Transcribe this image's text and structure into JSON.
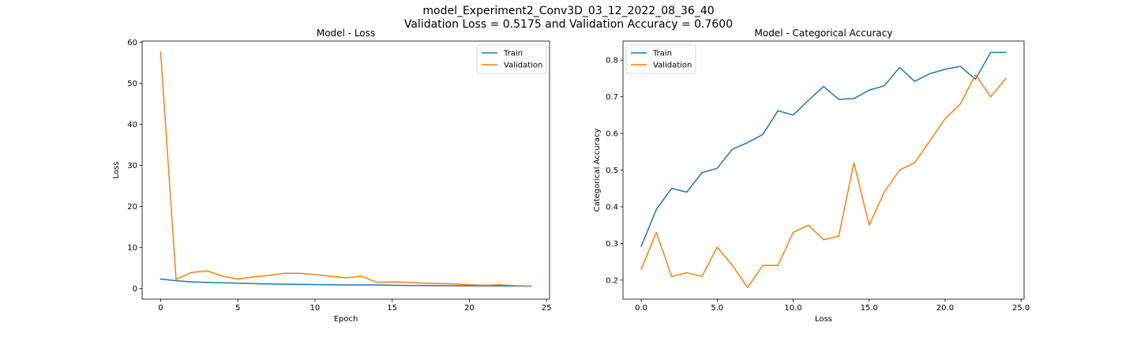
{
  "figure": {
    "title_line1": "model_Experiment2_Conv3D_03_12_2022_08_36_40",
    "title_line2": "Validation Loss = 0.5175 and Validation Accuracy = 0.7600"
  },
  "colors": {
    "train": "#1f77b4",
    "validation": "#ff7f0e"
  },
  "chart_data": [
    {
      "type": "line",
      "title": "Model - Loss",
      "xlabel": "Epoch",
      "ylabel": "Loss",
      "xlim": [
        -1.2,
        25.2
      ],
      "ylim": [
        -2.6,
        60.3
      ],
      "xticks": [
        0,
        5,
        10,
        15,
        20,
        25
      ],
      "yticks": [
        0,
        10,
        20,
        30,
        40,
        50,
        60
      ],
      "tick_format": "int",
      "legend": "upper right",
      "grid": false,
      "x": [
        0,
        1,
        2,
        3,
        4,
        5,
        6,
        7,
        8,
        9,
        10,
        11,
        12,
        13,
        14,
        15,
        16,
        17,
        18,
        19,
        20,
        21,
        22,
        23,
        24
      ],
      "series": [
        {
          "name": "Train",
          "color": "#1f77b4",
          "values": [
            2.3,
            1.9,
            1.6,
            1.5,
            1.4,
            1.3,
            1.2,
            1.1,
            1.05,
            1.0,
            0.95,
            0.9,
            0.85,
            0.85,
            0.85,
            0.8,
            0.75,
            0.72,
            0.7,
            0.68,
            0.65,
            0.65,
            0.62,
            0.6,
            0.55
          ]
        },
        {
          "name": "Validation",
          "color": "#ff7f0e",
          "values": [
            57.6,
            2.2,
            3.9,
            4.3,
            3.0,
            2.3,
            2.8,
            3.2,
            3.7,
            3.7,
            3.4,
            3.0,
            2.6,
            3.0,
            1.5,
            1.6,
            1.5,
            1.3,
            1.2,
            1.1,
            0.9,
            0.8,
            0.9,
            0.7,
            0.6
          ]
        }
      ]
    },
    {
      "type": "line",
      "title": "Model - Categorical Accuracy",
      "xlabel": "Loss",
      "ylabel": "Categorical Accuracy",
      "xlim": [
        -1.2,
        25.2
      ],
      "ylim": [
        0.148,
        0.852
      ],
      "xticks": [
        0,
        5,
        10,
        15,
        20,
        25
      ],
      "yticks": [
        0.2,
        0.3,
        0.4,
        0.5,
        0.6,
        0.7,
        0.8
      ],
      "tick_format": "one_decimal",
      "legend": "upper left",
      "grid": false,
      "x": [
        0,
        1,
        2,
        3,
        4,
        5,
        6,
        7,
        8,
        9,
        10,
        11,
        12,
        13,
        14,
        15,
        16,
        17,
        18,
        19,
        20,
        21,
        22,
        23,
        24
      ],
      "series": [
        {
          "name": "Train",
          "color": "#1f77b4",
          "values": [
            0.292,
            0.393,
            0.45,
            0.44,
            0.493,
            0.505,
            0.557,
            0.575,
            0.597,
            0.662,
            0.65,
            0.69,
            0.728,
            0.693,
            0.695,
            0.718,
            0.73,
            0.78,
            0.742,
            0.763,
            0.775,
            0.783,
            0.748,
            0.821,
            0.821
          ]
        },
        {
          "name": "Validation",
          "color": "#ff7f0e",
          "values": [
            0.23,
            0.33,
            0.21,
            0.22,
            0.21,
            0.29,
            0.24,
            0.18,
            0.24,
            0.24,
            0.33,
            0.35,
            0.31,
            0.32,
            0.52,
            0.35,
            0.44,
            0.5,
            0.52,
            0.58,
            0.64,
            0.68,
            0.76,
            0.7,
            0.75
          ]
        }
      ]
    }
  ]
}
